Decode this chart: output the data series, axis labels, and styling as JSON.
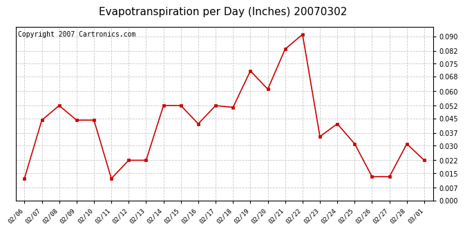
{
  "title": "Evapotranspiration per Day (Inches) 20070302",
  "copyright": "Copyright 2007 Cartronics.com",
  "dates": [
    "02/06",
    "02/07",
    "02/08",
    "02/09",
    "02/10",
    "02/11",
    "02/12",
    "02/13",
    "02/14",
    "02/15",
    "02/16",
    "02/17",
    "02/18",
    "02/19",
    "02/20",
    "02/21",
    "02/22",
    "02/23",
    "02/24",
    "02/25",
    "02/26",
    "02/27",
    "02/28",
    "03/01"
  ],
  "values": [
    0.012,
    0.044,
    0.052,
    0.044,
    0.044,
    0.012,
    0.022,
    0.022,
    0.052,
    0.052,
    0.042,
    0.052,
    0.051,
    0.071,
    0.061,
    0.083,
    0.091,
    0.035,
    0.042,
    0.031,
    0.013,
    0.013,
    0.031,
    0.022
  ],
  "line_color": "#cc0000",
  "marker_color": "#cc0000",
  "bg_color": "#ffffff",
  "grid_color": "#c8c8c8",
  "ylim": [
    0.0,
    0.095
  ],
  "yticks": [
    0.0,
    0.007,
    0.015,
    0.022,
    0.03,
    0.037,
    0.045,
    0.052,
    0.06,
    0.068,
    0.075,
    0.082,
    0.09
  ],
  "title_fontsize": 11,
  "copyright_fontsize": 7
}
